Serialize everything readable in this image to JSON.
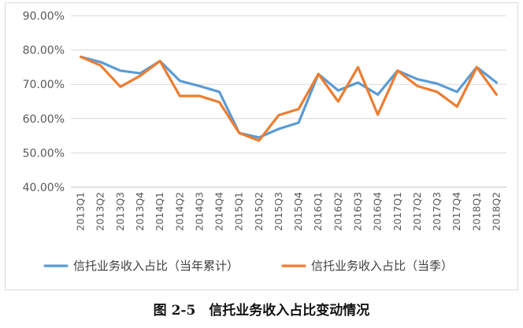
{
  "chart_data": {
    "type": "line",
    "categories": [
      "2013Q1",
      "2013Q2",
      "2013Q3",
      "2013Q4",
      "2014Q1",
      "2014Q2",
      "2014Q3",
      "2014Q4",
      "2015Q1",
      "2015Q2",
      "2015Q3",
      "2015Q4",
      "2016Q1",
      "2016Q2",
      "2016Q3",
      "2016Q4",
      "2017Q1",
      "2017Q2",
      "2017Q3",
      "2017Q4",
      "2018Q1",
      "2018Q2"
    ],
    "yticks": [
      "40.00%",
      "50.00%",
      "60.00%",
      "70.00%",
      "80.00%",
      "90.00%"
    ],
    "ylim": [
      40,
      90
    ],
    "grid": true,
    "legend_position": "bottom",
    "series": [
      {
        "name": "信托业务收入占比（当年累计）",
        "color": "#5B9BD5",
        "values": [
          78.0,
          76.5,
          74.0,
          73.2,
          76.8,
          71.0,
          69.5,
          67.8,
          55.8,
          54.5,
          57.0,
          58.8,
          73.0,
          68.2,
          70.5,
          67.0,
          74.0,
          71.5,
          70.2,
          67.8,
          75.0,
          70.5
        ]
      },
      {
        "name": "信托业务收入占比（当季）",
        "color": "#ED7D31",
        "values": [
          78.0,
          75.5,
          69.3,
          72.5,
          76.8,
          66.6,
          66.6,
          64.8,
          55.8,
          53.6,
          61.0,
          62.8,
          73.0,
          65.0,
          75.0,
          61.2,
          74.0,
          69.5,
          67.8,
          63.5,
          75.0,
          67.0
        ]
      }
    ]
  },
  "caption": "图 2-5　信托业务收入占比变动情况"
}
